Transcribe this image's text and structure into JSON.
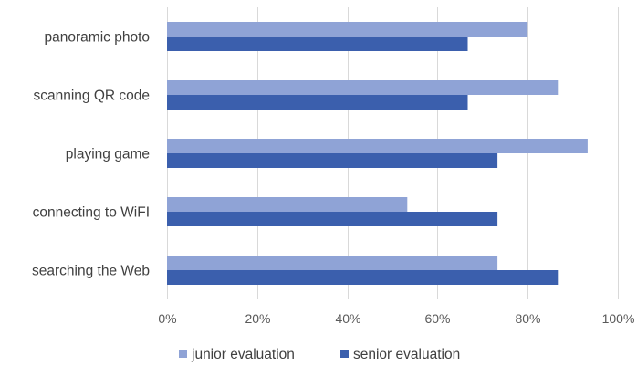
{
  "chart_data": {
    "type": "bar",
    "orientation": "horizontal",
    "categories": [
      "panoramic photo",
      "scanning QR code",
      "playing game",
      "connecting to WiFI",
      "searching the Web"
    ],
    "series": [
      {
        "name": "junior evaluation",
        "color": "#8fa3d6",
        "values": [
          80,
          86.7,
          93.3,
          53.3,
          73.3
        ]
      },
      {
        "name": "senior evaluation",
        "color": "#3b5fad",
        "values": [
          66.7,
          66.7,
          73.3,
          73.3,
          86.7
        ]
      }
    ],
    "xlim": [
      0,
      100
    ],
    "xticks": [
      "0%",
      "20%",
      "40%",
      "60%",
      "80%",
      "100%"
    ],
    "grid": true,
    "legend_position": "bottom"
  }
}
